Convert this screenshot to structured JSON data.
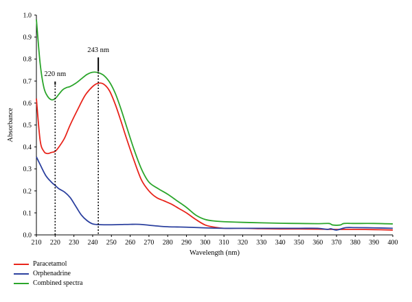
{
  "chart_data": {
    "type": "line",
    "title": "",
    "xlabel": "Wavelength (nm)",
    "ylabel": "Absorbance",
    "xlim": [
      210,
      400
    ],
    "ylim": [
      0.0,
      1.0
    ],
    "xticks": [
      "210",
      "220",
      "230",
      "240",
      "250",
      "260",
      "270",
      "280",
      "290",
      "300",
      "310",
      "320",
      "330",
      "340",
      "350",
      "360",
      "370",
      "380",
      "390",
      "400"
    ],
    "yticks": [
      "0.0",
      "0.1",
      "0.2",
      "0.3",
      "0.4",
      "0.5",
      "0.6",
      "0.7",
      "0.8",
      "0.9",
      "1.0"
    ],
    "grid": false,
    "legend_position": "bottom-left",
    "series": [
      {
        "name": "Paracetamol",
        "color": "#e8231a",
        "x": [
          210,
          212,
          214,
          216,
          218,
          220,
          222,
          225,
          228,
          232,
          236,
          240,
          243,
          246,
          249,
          252,
          255,
          258,
          262,
          266,
          270,
          274,
          278,
          282,
          286,
          290,
          295,
          300,
          305,
          310,
          320,
          330,
          340,
          350,
          360,
          370,
          380,
          390,
          400
        ],
        "y": [
          0.62,
          0.43,
          0.38,
          0.37,
          0.375,
          0.38,
          0.4,
          0.44,
          0.5,
          0.57,
          0.635,
          0.675,
          0.69,
          0.685,
          0.655,
          0.595,
          0.52,
          0.44,
          0.34,
          0.25,
          0.2,
          0.17,
          0.155,
          0.14,
          0.12,
          0.1,
          0.07,
          0.045,
          0.035,
          0.03,
          0.03,
          0.028,
          0.027,
          0.027,
          0.026,
          0.025,
          0.025,
          0.024,
          0.022
        ]
      },
      {
        "name": "Orphenadrine",
        "color": "#2a3f9e",
        "x": [
          210,
          212,
          215,
          218,
          220,
          222,
          225,
          228,
          231,
          234,
          237,
          240,
          243,
          246,
          250,
          255,
          260,
          265,
          270,
          275,
          280,
          285,
          290,
          300,
          310,
          320,
          330,
          340,
          350,
          360,
          365,
          367,
          370,
          375,
          380,
          390,
          400
        ],
        "y": [
          0.355,
          0.32,
          0.27,
          0.24,
          0.225,
          0.21,
          0.195,
          0.17,
          0.13,
          0.09,
          0.065,
          0.05,
          0.047,
          0.046,
          0.046,
          0.047,
          0.048,
          0.048,
          0.044,
          0.04,
          0.037,
          0.036,
          0.035,
          0.032,
          0.03,
          0.03,
          0.03,
          0.03,
          0.03,
          0.03,
          0.025,
          0.028,
          0.022,
          0.033,
          0.033,
          0.032,
          0.03
        ]
      },
      {
        "name": "Combined spectra",
        "color": "#2aa52a",
        "x": [
          210,
          212,
          214,
          216,
          218,
          220,
          222,
          224,
          226,
          228,
          231,
          234,
          237,
          240,
          243,
          246,
          249,
          252,
          255,
          258,
          262,
          266,
          270,
          275,
          280,
          285,
          290,
          295,
          300,
          305,
          310,
          320,
          330,
          340,
          350,
          360,
          366,
          368,
          372,
          374,
          380,
          390,
          400
        ],
        "y": [
          0.98,
          0.78,
          0.67,
          0.63,
          0.615,
          0.62,
          0.64,
          0.66,
          0.67,
          0.675,
          0.69,
          0.71,
          0.73,
          0.74,
          0.738,
          0.725,
          0.695,
          0.645,
          0.575,
          0.495,
          0.39,
          0.3,
          0.24,
          0.21,
          0.185,
          0.155,
          0.125,
          0.09,
          0.07,
          0.063,
          0.06,
          0.057,
          0.055,
          0.053,
          0.052,
          0.051,
          0.052,
          0.045,
          0.045,
          0.052,
          0.052,
          0.052,
          0.05
        ]
      }
    ],
    "annotations": [
      {
        "text": "220 nm",
        "x": 220,
        "y_top": 0.68,
        "label_y": 0.71
      },
      {
        "text": "243 nm",
        "x": 243,
        "y_top": 0.74,
        "label_y": 0.82
      }
    ]
  }
}
